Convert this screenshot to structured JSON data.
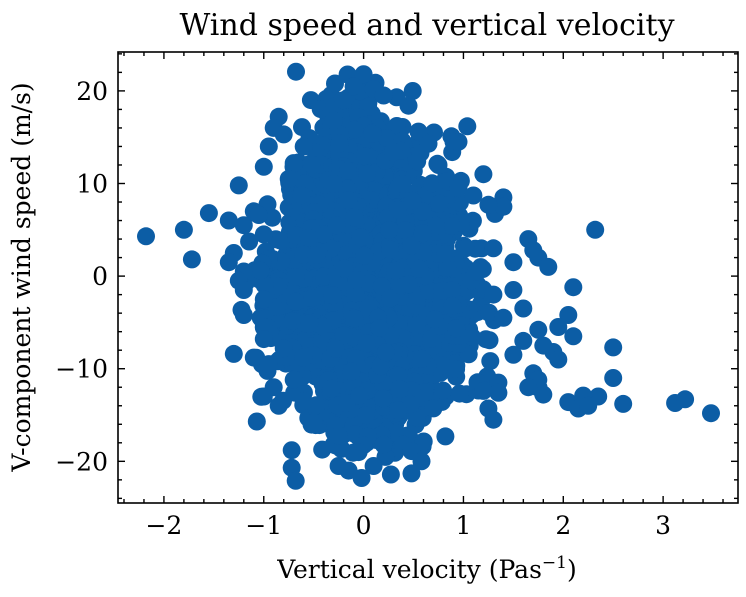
{
  "chart_data": {
    "type": "scatter",
    "title": "Wind speed and vertical velocity",
    "xlabel": "Vertical velocity (Pas",
    "xlabel_sup": "−1",
    "xlabel_close": ")",
    "ylabel": "V-component wind speed (m/s)",
    "xlim": [
      -2.46,
      3.75
    ],
    "ylim": [
      -24.5,
      24.2
    ],
    "x_ticks": [
      -2,
      -1,
      0,
      1,
      2,
      3
    ],
    "x_tick_labels": [
      "−2",
      "−1",
      "0",
      "1",
      "2",
      "3"
    ],
    "y_ticks": [
      -20,
      -10,
      0,
      10,
      20
    ],
    "y_tick_labels": [
      "−20",
      "−10",
      "0",
      "10",
      "20"
    ],
    "grid": false,
    "legend": "none",
    "marker_color": "#0C5DA5",
    "series": [
      {
        "points": [
          [
            0.0,
            21.8
          ],
          [
            -0.1,
            20.5
          ],
          [
            0.1,
            20.2
          ],
          [
            0.45,
            18.4
          ],
          [
            -0.2,
            19.0
          ],
          [
            0.2,
            19.5
          ],
          [
            -0.85,
            17.2
          ],
          [
            -0.9,
            16.0
          ],
          [
            -0.8,
            15.3
          ],
          [
            -0.3,
            16.8
          ],
          [
            0.55,
            15.6
          ],
          [
            0.65,
            14.3
          ],
          [
            0.9,
            14.5
          ],
          [
            0.95,
            14.5
          ],
          [
            -0.95,
            14.0
          ],
          [
            -0.6,
            14.0
          ],
          [
            -1.0,
            11.8
          ],
          [
            -0.7,
            12.2
          ],
          [
            0.75,
            12.0
          ],
          [
            1.2,
            11.0
          ],
          [
            -1.25,
            9.8
          ],
          [
            -0.75,
            10.5
          ],
          [
            0.95,
            9.5
          ],
          [
            1.1,
            8.7
          ],
          [
            1.4,
            8.5
          ],
          [
            1.4,
            7.5
          ],
          [
            1.25,
            7.7
          ],
          [
            -1.55,
            6.8
          ],
          [
            -1.1,
            7.0
          ],
          [
            -1.05,
            6.6
          ],
          [
            -1.35,
            6.0
          ],
          [
            -1.2,
            5.5
          ],
          [
            2.32,
            5.0
          ],
          [
            -1.8,
            5.0
          ],
          [
            -2.18,
            4.3
          ],
          [
            -1.0,
            4.5
          ],
          [
            1.65,
            4.0
          ],
          [
            1.3,
            3.0
          ],
          [
            1.7,
            2.8
          ],
          [
            1.75,
            2.0
          ],
          [
            -1.72,
            1.8
          ],
          [
            -1.3,
            2.5
          ],
          [
            -1.35,
            1.5
          ],
          [
            -1.2,
            0.5
          ],
          [
            1.5,
            1.5
          ],
          [
            1.85,
            1.0
          ],
          [
            -1.25,
            -0.5
          ],
          [
            -1.2,
            -1.5
          ],
          [
            2.1,
            -1.2
          ],
          [
            1.5,
            -1.5
          ],
          [
            -1.0,
            -2.5
          ],
          [
            1.3,
            -2.0
          ],
          [
            1.6,
            -3.5
          ],
          [
            -1.2,
            -4.2
          ],
          [
            2.05,
            -4.2
          ],
          [
            1.4,
            -4.5
          ],
          [
            -1.0,
            -5.5
          ],
          [
            1.95,
            -5.5
          ],
          [
            1.75,
            -5.8
          ],
          [
            -1.0,
            -6.8
          ],
          [
            2.1,
            -6.5
          ],
          [
            1.6,
            -7.0
          ],
          [
            1.8,
            -7.5
          ],
          [
            1.9,
            -8.2
          ],
          [
            -0.8,
            -7.8
          ],
          [
            2.5,
            -7.7
          ],
          [
            -1.3,
            -8.4
          ],
          [
            -1.1,
            -8.8
          ],
          [
            1.5,
            -8.5
          ],
          [
            1.95,
            -9.0
          ],
          [
            -0.95,
            -9.5
          ],
          [
            1.7,
            -10.5
          ],
          [
            -0.7,
            -11.2
          ],
          [
            1.35,
            -11.5
          ],
          [
            1.75,
            -11.2
          ],
          [
            2.5,
            -11.0
          ],
          [
            -0.9,
            -12.0
          ],
          [
            -1.0,
            -13.0
          ],
          [
            1.2,
            -12.4
          ],
          [
            1.35,
            -12.6
          ],
          [
            1.65,
            -12.0
          ],
          [
            1.8,
            -12.8
          ],
          [
            2.35,
            -13.0
          ],
          [
            2.2,
            -12.9
          ],
          [
            2.05,
            -13.6
          ],
          [
            2.15,
            -14.3
          ],
          [
            2.25,
            -14.0
          ],
          [
            2.6,
            -13.8
          ],
          [
            3.12,
            -13.7
          ],
          [
            3.22,
            -13.3
          ],
          [
            3.48,
            -14.8
          ],
          [
            -0.6,
            -13.5
          ],
          [
            -0.85,
            -14.0
          ],
          [
            1.25,
            -14.3
          ],
          [
            1.3,
            -15.5
          ],
          [
            -1.07,
            -15.7
          ],
          [
            -0.5,
            -15.8
          ],
          [
            -0.25,
            -17.2
          ],
          [
            0.2,
            -18.2
          ],
          [
            0.48,
            -18.9
          ],
          [
            -0.72,
            -18.8
          ],
          [
            -0.05,
            -19.0
          ],
          [
            0.58,
            -20.0
          ],
          [
            -0.72,
            -20.7
          ],
          [
            -0.25,
            -20.5
          ],
          [
            0.1,
            -20.5
          ],
          [
            0.48,
            -21.3
          ],
          [
            -0.15,
            -21.0
          ],
          [
            -0.68,
            -22.1
          ],
          [
            -0.02,
            -21.8
          ]
        ]
      }
    ],
    "dense_cores": [
      {
        "cx": 0.0,
        "cy": 0.0,
        "sx": 0.38,
        "sy": 7.6,
        "n": 1400,
        "seed": 11
      },
      {
        "cx": -0.15,
        "cy": 11.0,
        "sx": 0.22,
        "sy": 3.5,
        "n": 260,
        "seed": 23
      },
      {
        "cx": 0.3,
        "cy": -5.0,
        "sx": 0.42,
        "sy": 4.5,
        "n": 360,
        "seed": 37
      },
      {
        "cx": -0.45,
        "cy": -2.0,
        "sx": 0.32,
        "sy": 4.0,
        "n": 260,
        "seed": 41
      },
      {
        "cx": 0.55,
        "cy": 3.0,
        "sx": 0.28,
        "sy": 4.2,
        "n": 220,
        "seed": 53
      },
      {
        "cx": 0.05,
        "cy": -12.0,
        "sx": 0.25,
        "sy": 3.0,
        "n": 180,
        "seed": 61
      }
    ]
  }
}
